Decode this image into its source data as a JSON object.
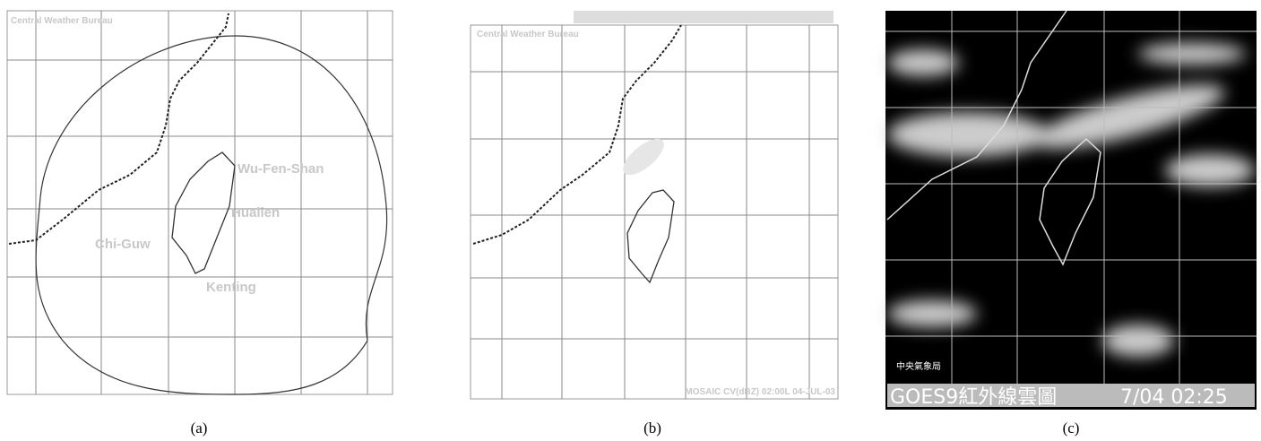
{
  "panels": [
    {
      "caption": "(a)",
      "source": "Central Weather Bureau",
      "stations": [
        "Wu-Fen-Shan",
        "Hualien",
        "Chi-Guw",
        "Kenting"
      ]
    },
    {
      "caption": "(b)",
      "source": "Central Weather Bureau",
      "footer": "MOSAIC CV(dBZ) 02:00L 04-JUL-03"
    },
    {
      "caption": "(c)",
      "source": "中央氣象局",
      "product": "GOES9紅外線雲圖",
      "time": "7/04 02:25"
    }
  ]
}
